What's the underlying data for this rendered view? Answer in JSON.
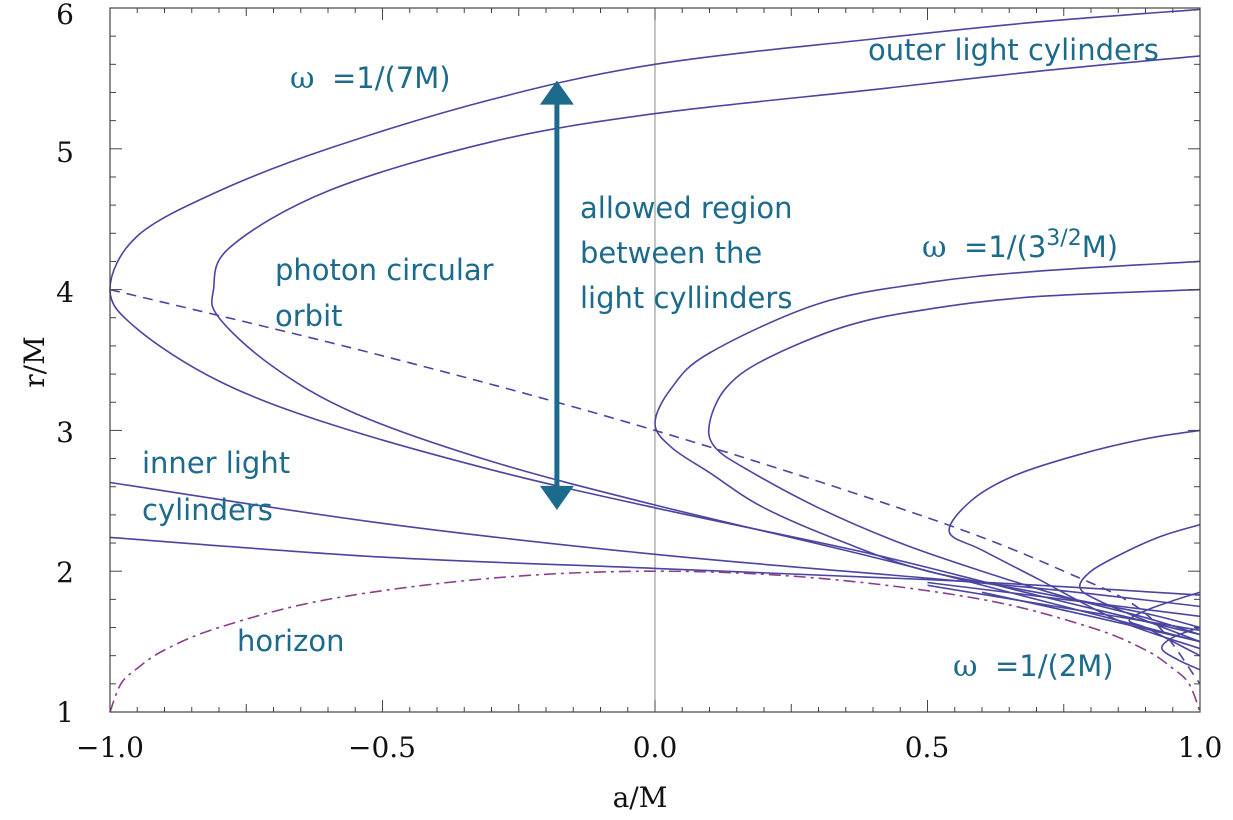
{
  "chart_data": {
    "type": "line",
    "xlabel": "a/M",
    "ylabel": "r/M",
    "xlim": [
      -1.0,
      1.0
    ],
    "ylim": [
      1,
      6
    ],
    "x_tick_labels": [
      {
        "value": -1.0,
        "label": "−1.0"
      },
      {
        "value": -0.5,
        "label": "−0.5"
      },
      {
        "value": 0.0,
        "label": "0.0"
      },
      {
        "value": 0.5,
        "label": "0.5"
      },
      {
        "value": 1.0,
        "label": "1.0"
      }
    ],
    "y_tick_labels": [
      {
        "value": 1,
        "label": "1"
      },
      {
        "value": 2,
        "label": "2"
      },
      {
        "value": 3,
        "label": "3"
      },
      {
        "value": 4,
        "label": "4"
      },
      {
        "value": 5,
        "label": "5"
      },
      {
        "value": 6,
        "label": "6"
      }
    ],
    "grid": false,
    "colors": {
      "curves": "#4b45a1",
      "horizon": "#8a3f8a",
      "annotation": "#1c6a8c",
      "arrow": "#1c6a8c",
      "frame": "#444444"
    },
    "series": [
      {
        "style": "solid",
        "x": [
          1.0,
          0.7,
          0.4,
          0.0,
          -0.3,
          -0.6,
          -0.8,
          -0.95,
          -1.0,
          -0.95,
          -0.8,
          -0.6,
          -0.3,
          0.0,
          0.4,
          0.7,
          1.0
        ],
        "y": [
          1.55,
          1.83,
          2.12,
          2.45,
          2.72,
          3.05,
          3.35,
          3.72,
          4.0,
          4.38,
          4.7,
          5.0,
          5.35,
          5.6,
          5.78,
          5.9,
          5.99
        ]
      },
      {
        "style": "solid",
        "x": [
          1.0,
          0.7,
          0.4,
          0.0,
          -0.3,
          -0.55,
          -0.7,
          -0.8,
          -0.81,
          -0.78,
          -0.6,
          -0.3,
          0.0,
          0.4,
          0.7,
          1.0
        ],
        "y": [
          1.5,
          1.8,
          2.1,
          2.47,
          2.78,
          3.12,
          3.45,
          3.8,
          4.0,
          4.3,
          4.7,
          5.05,
          5.25,
          5.42,
          5.55,
          5.66
        ]
      },
      {
        "style": "solid",
        "x": [
          1.0,
          0.9,
          0.7,
          0.5,
          0.35,
          0.2,
          0.1,
          0.03,
          0.0,
          0.03,
          0.1,
          0.3,
          0.5,
          0.7,
          1.0
        ],
        "y": [
          1.6,
          1.7,
          1.85,
          2.0,
          2.2,
          2.45,
          2.7,
          2.88,
          3.05,
          3.3,
          3.55,
          3.9,
          4.05,
          4.13,
          4.2
        ]
      },
      {
        "style": "solid",
        "x": [
          1.0,
          0.9,
          0.75,
          0.6,
          0.45,
          0.3,
          0.17,
          0.11,
          0.1,
          0.13,
          0.2,
          0.35,
          0.5,
          0.7,
          1.0
        ],
        "y": [
          1.55,
          1.67,
          1.82,
          2.0,
          2.2,
          2.45,
          2.72,
          2.88,
          3.05,
          3.3,
          3.5,
          3.74,
          3.86,
          3.95,
          4.0
        ]
      },
      {
        "style": "solid",
        "x": [
          1.0,
          0.85,
          0.7,
          0.6,
          0.54,
          0.58,
          0.66,
          0.78,
          0.9,
          1.0
        ],
        "y": [
          1.45,
          1.65,
          1.95,
          2.15,
          2.28,
          2.5,
          2.68,
          2.83,
          2.94,
          3.0
        ]
      },
      {
        "style": "solid",
        "x": [
          1.0,
          0.9,
          0.82,
          0.78,
          0.8,
          0.86,
          0.93,
          1.0
        ],
        "y": [
          1.5,
          1.65,
          1.78,
          1.88,
          2.0,
          2.13,
          2.25,
          2.33
        ]
      },
      {
        "style": "solid",
        "x": [
          1.0,
          0.95,
          0.9,
          0.87,
          0.9,
          0.95,
          1.0
        ],
        "y": [
          1.4,
          1.5,
          1.6,
          1.65,
          1.72,
          1.79,
          1.85
        ]
      },
      {
        "style": "solid",
        "x": [
          1.0,
          0.96,
          0.93,
          0.95,
          1.0
        ],
        "y": [
          1.3,
          1.37,
          1.45,
          1.53,
          1.6
        ]
      },
      {
        "style": "solid",
        "x": [
          -1.0,
          -0.5,
          0.0,
          0.5,
          0.75,
          1.0
        ],
        "y": [
          2.63,
          2.34,
          2.12,
          1.95,
          1.86,
          1.75
        ]
      },
      {
        "style": "solid",
        "x": [
          -1.0,
          -0.5,
          0.0,
          0.5,
          0.75,
          1.0
        ],
        "y": [
          2.24,
          2.1,
          2.02,
          1.94,
          1.89,
          1.83
        ]
      },
      {
        "style": "solid",
        "x": [
          0.5,
          0.75,
          1.0
        ],
        "y": [
          1.92,
          1.8,
          1.68
        ]
      },
      {
        "style": "solid",
        "x": [
          0.5,
          0.75,
          1.0
        ],
        "y": [
          1.9,
          1.74,
          1.58
        ]
      },
      {
        "style": "solid",
        "x": [
          0.6,
          0.8,
          1.0
        ],
        "y": [
          1.85,
          1.68,
          1.5
        ]
      },
      {
        "style": "dashed",
        "x": [
          -1.0,
          -0.5,
          0.0,
          0.5,
          0.75,
          0.9,
          1.0
        ],
        "y": [
          4.0,
          3.53,
          3.0,
          2.38,
          2.0,
          1.7,
          1.2
        ]
      },
      {
        "style": "dashdot",
        "x": [
          -1.0,
          -0.98,
          -0.95,
          -0.9,
          -0.8,
          -0.6,
          -0.3,
          0.0,
          0.3,
          0.6,
          0.8,
          0.9,
          0.95,
          0.98,
          1.0
        ],
        "y": [
          1.0,
          1.2,
          1.31,
          1.44,
          1.6,
          1.8,
          1.95,
          2.0,
          1.95,
          1.8,
          1.6,
          1.44,
          1.31,
          1.2,
          1.0
        ]
      }
    ],
    "annotations": [
      {
        "id": "omega-7m",
        "text": "=1/(7M)"
      },
      {
        "id": "omega-33",
        "text": "=1/(3"
      },
      {
        "id": "omega-33-sup",
        "text": "3/2"
      },
      {
        "id": "omega-33-tail",
        "text": "M)"
      },
      {
        "id": "omega-2m",
        "text": "=1/(2M)"
      },
      {
        "id": "omega-symbol",
        "text": "ω"
      },
      {
        "id": "outer-light-cylinders",
        "text": "outer light cylinders"
      },
      {
        "id": "allowed-1",
        "text": "allowed region"
      },
      {
        "id": "allowed-2",
        "text": "between the"
      },
      {
        "id": "allowed-3",
        "text": "light cyllinders"
      },
      {
        "id": "photon-1",
        "text": "photon circular"
      },
      {
        "id": "photon-2",
        "text": "orbit"
      },
      {
        "id": "inner-1",
        "text": "inner light"
      },
      {
        "id": "inner-2",
        "text": "cylinders"
      },
      {
        "id": "horizon",
        "text": "horizon"
      }
    ],
    "arrow": {
      "x": -0.18,
      "y_from": 2.45,
      "y_to": 5.47
    }
  }
}
